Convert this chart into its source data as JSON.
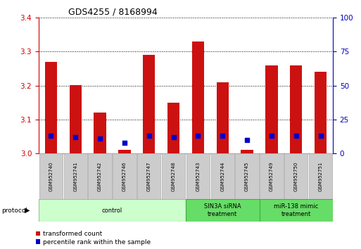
{
  "title": "GDS4255 / 8168994",
  "samples": [
    "GSM952740",
    "GSM952741",
    "GSM952742",
    "GSM952746",
    "GSM952747",
    "GSM952748",
    "GSM952743",
    "GSM952744",
    "GSM952745",
    "GSM952749",
    "GSM952750",
    "GSM952751"
  ],
  "transformed_count": [
    3.27,
    3.2,
    3.12,
    3.01,
    3.29,
    3.15,
    3.33,
    3.21,
    3.01,
    3.26,
    3.26,
    3.24
  ],
  "percentile_rank": [
    13,
    12,
    11,
    8,
    13,
    12,
    13,
    13,
    10,
    13,
    13,
    13
  ],
  "ylim_left": [
    3.0,
    3.4
  ],
  "ylim_right": [
    0,
    100
  ],
  "yticks_left": [
    3.0,
    3.1,
    3.2,
    3.3,
    3.4
  ],
  "yticks_right": [
    0,
    25,
    50,
    75,
    100
  ],
  "bar_color": "#cc1111",
  "dot_color": "#0000cc",
  "groups": [
    {
      "label": "control",
      "start": 0,
      "end": 6,
      "color": "#ccffcc",
      "border": "#88cc88"
    },
    {
      "label": "SIN3A siRNA\ntreatment",
      "start": 6,
      "end": 9,
      "color": "#66dd66",
      "border": "#44aa44"
    },
    {
      "label": "miR-138 mimic\ntreatment",
      "start": 9,
      "end": 12,
      "color": "#66dd66",
      "border": "#44aa44"
    }
  ],
  "legend_items": [
    {
      "label": "transformed count",
      "color": "#cc1111"
    },
    {
      "label": "percentile rank within the sample",
      "color": "#0000cc"
    }
  ],
  "protocol_label": "protocol",
  "bar_width": 0.5,
  "background_color": "#ffffff",
  "left_axis_color": "#cc0000",
  "right_axis_color": "#0000bb",
  "label_box_color": "#cccccc",
  "label_box_edge": "#aaaaaa"
}
